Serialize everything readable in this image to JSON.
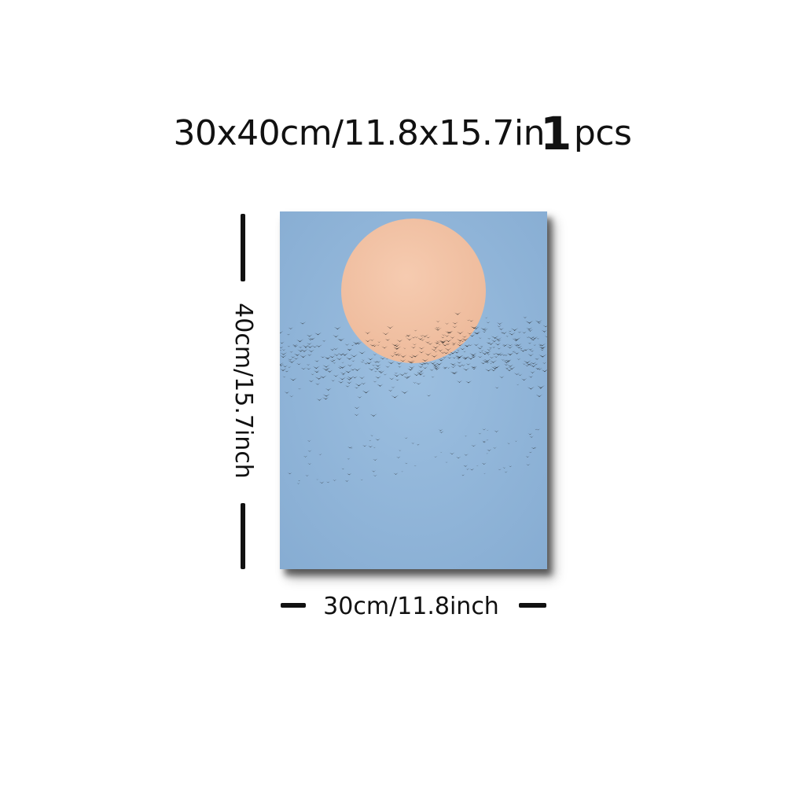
{
  "title": {
    "size_text": "30x40cm/11.8x15.7in",
    "quantity": "1",
    "unit": "pcs"
  },
  "dimensions": {
    "height_label": "40cm/15.7inch",
    "width_label": "30cm/11.8inch"
  },
  "artwork": {
    "subject": "sun-and-flock-of-birds",
    "colors": {
      "sky": "#8fb4d8",
      "sun": "#f2c2a6",
      "birds": "#1a1a1a"
    }
  }
}
